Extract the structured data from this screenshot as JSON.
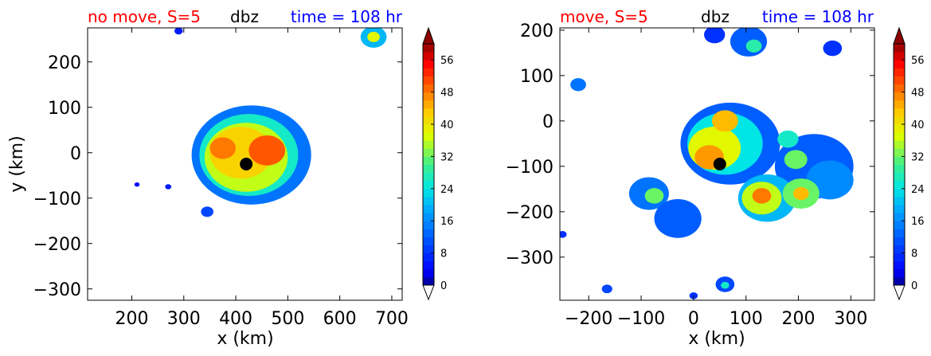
{
  "figure": {
    "panels": [
      {
        "title": {
          "left": "no move, S=5",
          "center": "dbz",
          "right": "time = 108 hr"
        },
        "xlabel": "x (km)",
        "ylabel": "y (km)",
        "colorbar_label": ""
      },
      {
        "title": {
          "left": "move, S=5",
          "center": "dbz",
          "right": "time = 108 hr"
        },
        "xlabel": "x (km)",
        "ylabel": "",
        "colorbar_label": ""
      }
    ]
  },
  "colors": {
    "title_left": "#ff0000",
    "title_center": "#000000",
    "title_right": "#0000ff",
    "marker": "#000000"
  },
  "chart_data": [
    {
      "type": "heatmap",
      "variable": "dbz",
      "title": "no move, S=5   dbz   time = 108 hr",
      "xlabel": "x (km)",
      "ylabel": "y (km)",
      "xlim": [
        115,
        720
      ],
      "ylim": [
        -325,
        275
      ],
      "xticks": [
        200,
        300,
        400,
        500,
        600,
        700
      ],
      "yticks": [
        200,
        100,
        0,
        -100,
        -200,
        -300
      ],
      "colorbar": {
        "min": 0,
        "max": 60,
        "step": 2,
        "ticks": [
          0,
          8,
          16,
          24,
          32,
          40,
          48,
          56
        ],
        "extend": "both"
      },
      "storm_center": {
        "x": 420,
        "y": -25
      },
      "features": [
        {
          "cx": 430,
          "cy": -5,
          "r": 115,
          "value": 14
        },
        {
          "cx": 425,
          "cy": -5,
          "r": 95,
          "value": 26
        },
        {
          "cx": 420,
          "cy": -10,
          "r": 80,
          "value": 36
        },
        {
          "cx": 410,
          "cy": 0,
          "r": 60,
          "value": 42
        },
        {
          "cx": 460,
          "cy": 5,
          "r": 35,
          "value": 50
        },
        {
          "cx": 375,
          "cy": 10,
          "r": 25,
          "value": 48
        },
        {
          "cx": 665,
          "cy": 255,
          "r": 25,
          "value": 20
        },
        {
          "cx": 665,
          "cy": 255,
          "r": 12,
          "value": 38
        },
        {
          "cx": 290,
          "cy": 268,
          "r": 8,
          "value": 6
        },
        {
          "cx": 270,
          "cy": -75,
          "r": 6,
          "value": 6
        },
        {
          "cx": 210,
          "cy": -70,
          "r": 5,
          "value": 4
        },
        {
          "cx": 345,
          "cy": -130,
          "r": 12,
          "value": 10
        }
      ]
    },
    {
      "type": "heatmap",
      "variable": "dbz",
      "title": "move, S=5   dbz   time = 108 hr",
      "xlabel": "x (km)",
      "ylabel": "",
      "xlim": [
        -255,
        345
      ],
      "ylim": [
        -395,
        205
      ],
      "xticks": [
        -200,
        -100,
        0,
        100,
        200,
        300
      ],
      "yticks": [
        200,
        100,
        0,
        -100,
        -200,
        -300
      ],
      "colorbar": {
        "min": 0,
        "max": 60,
        "step": 2,
        "ticks": [
          0,
          8,
          16,
          24,
          32,
          40,
          48,
          56
        ],
        "extend": "both"
      },
      "storm_center": {
        "x": 50,
        "y": -95
      },
      "features": [
        {
          "cx": 70,
          "cy": -50,
          "r": 95,
          "value": 12
        },
        {
          "cx": 60,
          "cy": -50,
          "r": 72,
          "value": 24
        },
        {
          "cx": 40,
          "cy": -60,
          "r": 50,
          "value": 38
        },
        {
          "cx": 60,
          "cy": 0,
          "r": 25,
          "value": 44
        },
        {
          "cx": 30,
          "cy": -80,
          "r": 28,
          "value": 46
        },
        {
          "cx": 230,
          "cy": -100,
          "r": 75,
          "value": 12
        },
        {
          "cx": 260,
          "cy": -130,
          "r": 45,
          "value": 16
        },
        {
          "cx": 140,
          "cy": -170,
          "r": 55,
          "value": 20
        },
        {
          "cx": 130,
          "cy": -170,
          "r": 38,
          "value": 36
        },
        {
          "cx": 130,
          "cy": -165,
          "r": 18,
          "value": 48
        },
        {
          "cx": 205,
          "cy": -160,
          "r": 35,
          "value": 32
        },
        {
          "cx": 205,
          "cy": -160,
          "r": 15,
          "value": 44
        },
        {
          "cx": 195,
          "cy": -85,
          "r": 22,
          "value": 32
        },
        {
          "cx": 180,
          "cy": -40,
          "r": 20,
          "value": 26
        },
        {
          "cx": -85,
          "cy": -160,
          "r": 38,
          "value": 14
        },
        {
          "cx": -75,
          "cy": -165,
          "r": 18,
          "value": 32
        },
        {
          "cx": -30,
          "cy": -215,
          "r": 45,
          "value": 12
        },
        {
          "cx": 105,
          "cy": 175,
          "r": 35,
          "value": 12
        },
        {
          "cx": 115,
          "cy": 165,
          "r": 15,
          "value": 28
        },
        {
          "cx": 40,
          "cy": 190,
          "r": 20,
          "value": 8
        },
        {
          "cx": 265,
          "cy": 160,
          "r": 18,
          "value": 8
        },
        {
          "cx": -220,
          "cy": 80,
          "r": 15,
          "value": 14
        },
        {
          "cx": 60,
          "cy": -360,
          "r": 18,
          "value": 10
        },
        {
          "cx": 60,
          "cy": -362,
          "r": 8,
          "value": 26
        },
        {
          "cx": -165,
          "cy": -370,
          "r": 10,
          "value": 10
        },
        {
          "cx": -250,
          "cy": -250,
          "r": 8,
          "value": 8
        },
        {
          "cx": 0,
          "cy": -385,
          "r": 8,
          "value": 8
        }
      ]
    }
  ]
}
